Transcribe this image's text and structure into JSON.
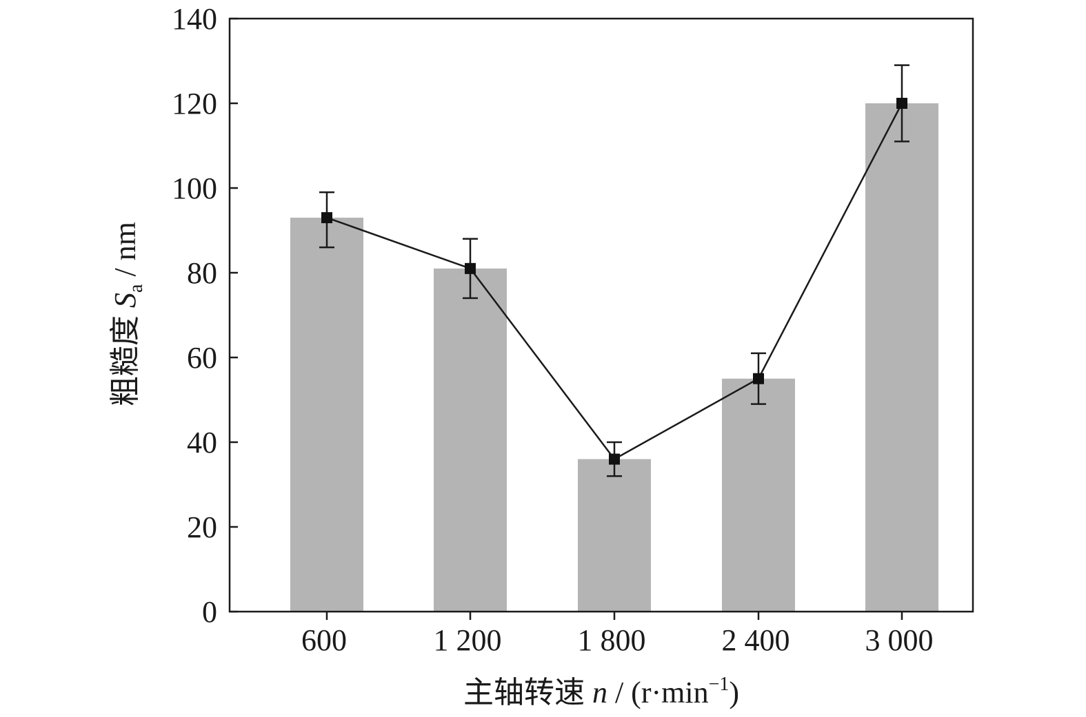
{
  "chart_data": {
    "type": "bar",
    "categories": [
      "600",
      "1 200",
      "1 800",
      "2 400",
      "3 000"
    ],
    "values": [
      93,
      81,
      36,
      55,
      120
    ],
    "line_values": [
      93,
      81,
      36,
      55,
      120
    ],
    "error_bars": [
      {
        "low": 86,
        "high": 99
      },
      {
        "low": 74,
        "high": 88
      },
      {
        "low": 32,
        "high": 40
      },
      {
        "low": 49,
        "high": 61
      },
      {
        "low": 111,
        "high": 129
      }
    ],
    "yticks": [
      "0",
      "20",
      "40",
      "60",
      "80",
      "100",
      "120",
      "140"
    ],
    "ylim": [
      0,
      140
    ],
    "grid": false,
    "legend": "none",
    "xlabel": {
      "prefix": "主轴转速 ",
      "var": "n",
      "unit_open": " / (r·min",
      "sup": "−1",
      "unit_close": ")"
    },
    "ylabel": {
      "prefix": "粗糙度 ",
      "var": "S",
      "sub": "a",
      "unit": " / nm"
    },
    "colors": {
      "bar": "#b5b4b5",
      "line": "#1a1a1a",
      "marker": "#111111",
      "axis": "#1a1a1a"
    }
  }
}
